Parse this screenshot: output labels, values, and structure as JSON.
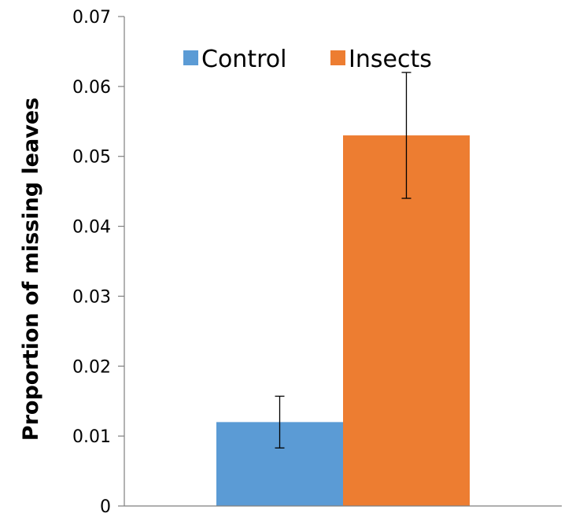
{
  "chart_data": {
    "type": "bar",
    "title": "",
    "xlabel": "",
    "ylabel": "Proportion of missing leaves",
    "ylim": [
      0,
      0.07
    ],
    "yticks": [
      "0",
      "0.01",
      "0.02",
      "0.03",
      "0.04",
      "0.05",
      "0.06",
      "0.07"
    ],
    "grid": false,
    "legend_position": "top",
    "series": [
      {
        "name": "Control",
        "color": "#5b9bd5",
        "value": 0.012,
        "error_low": 0.0083,
        "error_high": 0.0157
      },
      {
        "name": "Insects",
        "color": "#ed7d31",
        "value": 0.053,
        "error_low": 0.044,
        "error_high": 0.062
      }
    ]
  }
}
